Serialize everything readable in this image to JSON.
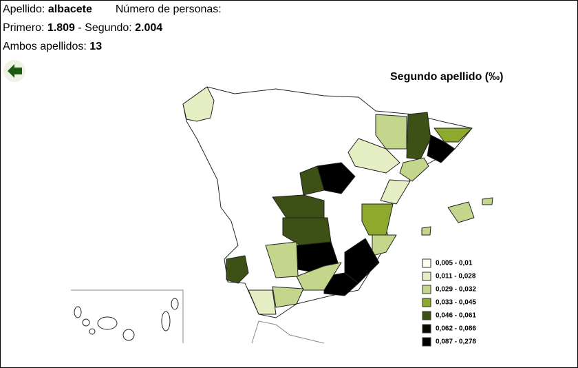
{
  "header": {
    "surname_label": "Apellido:",
    "surname": "albacete",
    "people_label": "Número de personas:",
    "first_label": "Primero:",
    "first": "1.809",
    "second_label": "- Segundo:",
    "second": "2.004",
    "both_label": "Ambos apellidos:",
    "both": "13"
  },
  "map": {
    "title": "Segundo apellido (‰)",
    "legend": [
      {
        "label": "0,005 - 0,01",
        "color": "#fdfdf0"
      },
      {
        "label": "0,011 - 0,028",
        "color": "#e6eec4"
      },
      {
        "label": "0,029 - 0,032",
        "color": "#c4d58c"
      },
      {
        "label": "0,033 - 0,045",
        "color": "#8daa2e"
      },
      {
        "label": "0,046 - 0,061",
        "color": "#3d5015"
      },
      {
        "label": "0,062 - 0,086",
        "color": "#0b0b02"
      },
      {
        "label": "0,087 - 0,278",
        "color": "#000000"
      }
    ]
  }
}
